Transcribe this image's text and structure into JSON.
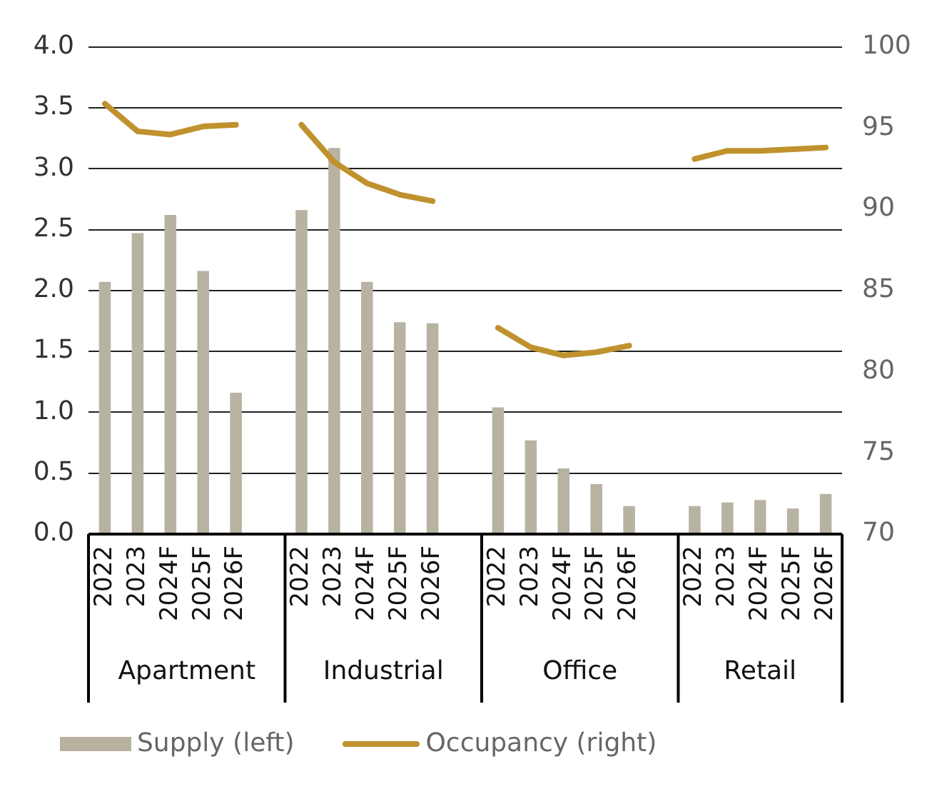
{
  "chart_data": {
    "type": "bar",
    "categories": [
      "2022",
      "2023",
      "2024F",
      "2025F",
      "2026F",
      null,
      "2022",
      "2023",
      "2024F",
      "2025F",
      "2026F",
      null,
      "2022",
      "2023",
      "2024F",
      "2025F",
      "2026F",
      null,
      "2022",
      "2023",
      "2024F",
      "2025F",
      "2026F"
    ],
    "annotations": [
      "Apartment",
      "Industrial",
      "Office",
      "Retail"
    ],
    "series": [
      {
        "name": "Supply (left)",
        "color": "#b8b2a2",
        "values": [
          2.07,
          2.47,
          2.62,
          2.16,
          1.16,
          null,
          2.66,
          3.17,
          2.07,
          1.74,
          1.73,
          null,
          1.04,
          0.77,
          0.54,
          0.41,
          0.23,
          null,
          0.23,
          0.26,
          0.28,
          0.21,
          0.33
        ]
      },
      {
        "name": "Occupancy (right)",
        "type": "line",
        "axis": "y2",
        "color": "#c0922e",
        "values": [
          96.5,
          94.8,
          94.6,
          95.1,
          95.2,
          null,
          95.2,
          92.9,
          91.6,
          90.9,
          90.5,
          null,
          82.7,
          81.5,
          81.0,
          81.2,
          81.6,
          null,
          93.1,
          93.6,
          93.6,
          93.7,
          93.8
        ]
      }
    ],
    "ylim": [
      0,
      4
    ],
    "yticks": [
      {
        "value": 0,
        "label": "0.0"
      },
      0.5,
      {
        "value": 1,
        "label": "1.0"
      },
      1.5,
      {
        "value": 2,
        "label": "2.0"
      },
      2.5,
      {
        "value": 3,
        "label": "3.0"
      },
      3.5,
      {
        "value": 4,
        "label": "4.0"
      }
    ],
    "y2lim": [
      70,
      100
    ],
    "y2ticks": [
      70,
      75,
      80,
      85,
      90,
      95,
      100
    ],
    "grid": "y",
    "legend": "bottom",
    "marker": "none",
    "line_style": "solid"
  }
}
